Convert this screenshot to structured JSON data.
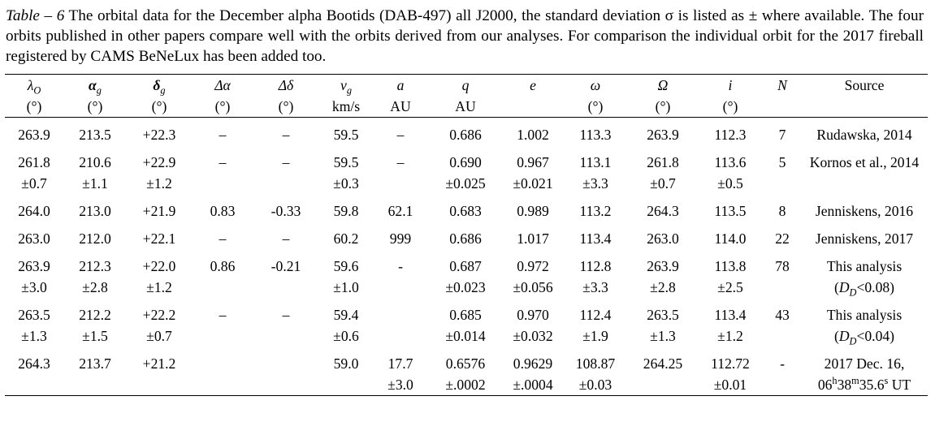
{
  "caption": {
    "lead": "Table – 6",
    "text": " The orbital data for the December alpha Bootids (DAB-497) all J2000, the standard deviation σ is listed as ± where available. The four orbits published in other papers compare well with the orbits derived from our analyses. For comparison the individual orbit for the 2017 fireball registered by CAMS BeNeLux has been added too."
  },
  "headers": [
    {
      "sym": "λ",
      "sub": "O",
      "unit": "(°)",
      "style": "sym"
    },
    {
      "sym": "α",
      "sub": "g",
      "unit": "(°)",
      "style": "bold"
    },
    {
      "sym": "δ",
      "sub": "g",
      "unit": "(°)",
      "style": "bold"
    },
    {
      "sym": "Δα",
      "sub": "",
      "unit": "(°)",
      "style": "sym"
    },
    {
      "sym": "Δδ",
      "sub": "",
      "unit": "(°)",
      "style": "sym"
    },
    {
      "sym": "v",
      "sub": "g",
      "unit": "km/s",
      "style": "sym"
    },
    {
      "sym": "a",
      "sub": "",
      "unit": "AU",
      "style": "sym"
    },
    {
      "sym": "q",
      "sub": "",
      "unit": "AU",
      "style": "sym"
    },
    {
      "sym": "e",
      "sub": "",
      "unit": "",
      "style": "sym"
    },
    {
      "sym": "ω",
      "sub": "",
      "unit": "(°)",
      "style": "sym"
    },
    {
      "sym": "Ω",
      "sub": "",
      "unit": "(°)",
      "style": "sym"
    },
    {
      "sym": "i",
      "sub": "",
      "unit": "(°)",
      "style": "sym"
    },
    {
      "sym": "N",
      "sub": "",
      "unit": "",
      "style": "sym"
    },
    {
      "sym": "Source",
      "sub": "",
      "unit": "",
      "style": "plain"
    }
  ],
  "rows": [
    {
      "main": [
        "263.9",
        "213.5",
        "+22.3",
        "–",
        "–",
        "59.5",
        "–",
        "0.686",
        "1.002",
        "113.3",
        "263.9",
        "112.3",
        "7",
        "Rudawska, 2014"
      ],
      "sd": [
        "",
        "",
        "",
        "",
        "",
        "",
        "",
        "",
        "",
        "",
        "",
        "",
        "",
        ""
      ]
    },
    {
      "main": [
        "261.8",
        "210.6",
        "+22.9",
        "–",
        "–",
        "59.5",
        "–",
        "0.690",
        "0.967",
        "113.1",
        "261.8",
        "113.6",
        "5",
        "Kornos et al., 2014"
      ],
      "sd": [
        "±0.7",
        "±1.1",
        "±1.2",
        "",
        "",
        "±0.3",
        "",
        "±0.025",
        "±0.021",
        "±3.3",
        "±0.7",
        "±0.5",
        "",
        ""
      ]
    },
    {
      "main": [
        "264.0",
        "213.0",
        "+21.9",
        "0.83",
        "-0.33",
        "59.8",
        "62.1",
        "0.683",
        "0.989",
        "113.2",
        "264.3",
        "113.5",
        "8",
        "Jenniskens, 2016"
      ],
      "sd": [
        "",
        "",
        "",
        "",
        "",
        "",
        "",
        "",
        "",
        "",
        "",
        "",
        "",
        ""
      ]
    },
    {
      "main": [
        "263.0",
        "212.0",
        "+22.1",
        "–",
        "–",
        "60.2",
        "999",
        "0.686",
        "1.017",
        "113.4",
        "263.0",
        "114.0",
        "22",
        "Jenniskens, 2017"
      ],
      "sd": [
        "",
        "",
        "",
        "",
        "",
        "",
        "",
        "",
        "",
        "",
        "",
        "",
        "",
        ""
      ]
    },
    {
      "main": [
        "263.9",
        "212.3",
        "+22.0",
        "0.86",
        "-0.21",
        "59.6",
        "-",
        "0.687",
        "0.972",
        "112.8",
        "263.9",
        "113.8",
        "78",
        "This analysis"
      ],
      "sd": [
        "±3.0",
        "±2.8",
        "±1.2",
        "",
        "",
        "±1.0",
        "",
        "±0.023",
        "±0.056",
        "±3.3",
        "±2.8",
        "±2.5",
        "",
        ""
      ],
      "sd_source": {
        "pre": "(",
        "D": "D",
        "Dsub": "D",
        "post": "<0.08)"
      }
    },
    {
      "main": [
        "263.5",
        "212.2",
        "+22.2",
        "–",
        "–",
        "59.4",
        "",
        "0.685",
        "0.970",
        "112.4",
        "263.5",
        "113.4",
        "43",
        "This analysis"
      ],
      "sd": [
        "±1.3",
        "±1.5",
        "±0.7",
        "",
        "",
        "±0.6",
        "",
        "±0.014",
        "±0.032",
        "±1.9",
        "±1.3",
        "±1.2",
        "",
        ""
      ],
      "sd_source": {
        "pre": "(",
        "D": "D",
        "Dsub": "D",
        "post": "<0.04)"
      }
    },
    {
      "main": [
        "264.3",
        "213.7",
        "+21.2",
        "",
        "",
        "59.0",
        "17.7",
        "0.6576",
        "0.9629",
        "108.87",
        "264.25",
        "112.72",
        "-",
        "2017 Dec. 16,"
      ],
      "sd": [
        "",
        "",
        "",
        "",
        "",
        "",
        "±3.0",
        "±.0002",
        "±.0004",
        "±0.03",
        "",
        "±0.01",
        "",
        ""
      ],
      "sd_time": {
        "hh": "06",
        "h": "h",
        "mm": "38",
        "m": "m",
        "ss": "35.6",
        "s": "s",
        "tail": " UT"
      }
    }
  ]
}
